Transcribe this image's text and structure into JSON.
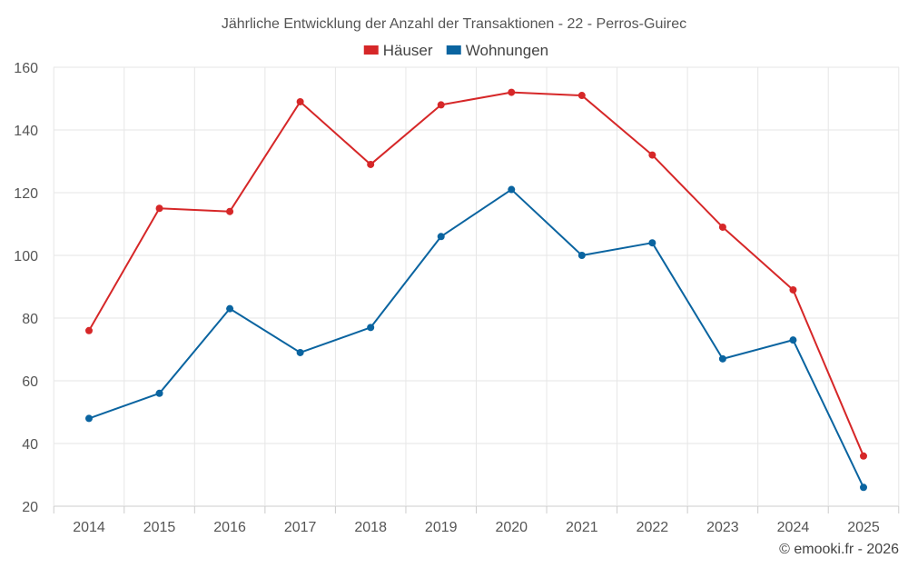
{
  "chart_data": {
    "type": "line",
    "title": "Jährliche Entwicklung der Anzahl der Transaktionen - 22 - Perros-Guirec",
    "xlabel": "",
    "ylabel": "",
    "categories": [
      "2014",
      "2015",
      "2016",
      "2017",
      "2018",
      "2019",
      "2020",
      "2021",
      "2022",
      "2023",
      "2024",
      "2025"
    ],
    "ylim": [
      20,
      160
    ],
    "yticks": [
      20,
      40,
      60,
      80,
      100,
      120,
      140,
      160
    ],
    "grid": true,
    "legend_position": "top-center",
    "series": [
      {
        "name": "Häuser",
        "color": "#d62728",
        "values": [
          76,
          115,
          114,
          149,
          129,
          148,
          152,
          151,
          132,
          109,
          89,
          36
        ]
      },
      {
        "name": "Wohnungen",
        "color": "#0a64a0",
        "values": [
          48,
          56,
          83,
          69,
          77,
          106,
          121,
          100,
          104,
          67,
          73,
          26
        ]
      }
    ]
  },
  "credit": "© emooki.fr - 2026"
}
